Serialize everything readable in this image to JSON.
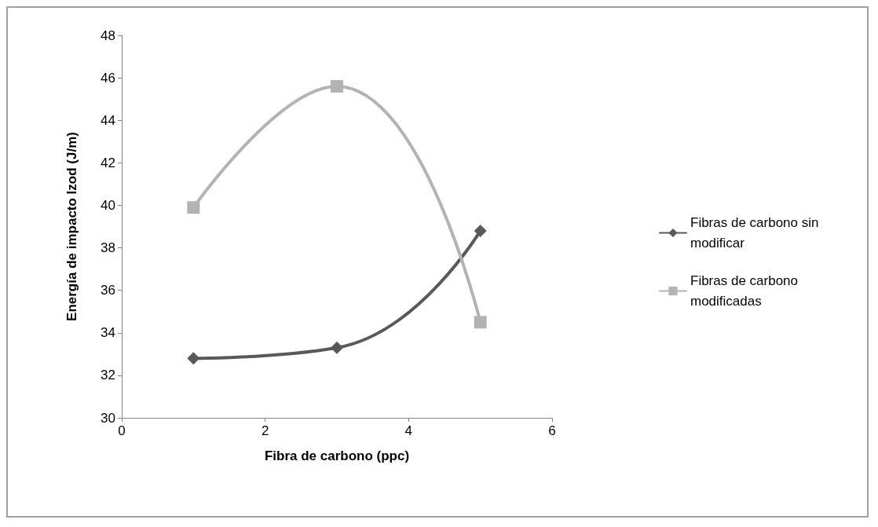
{
  "chart_data": {
    "type": "line",
    "xlabel": "Fibra de carbono (ppc)",
    "ylabel": "Energía de impacto Izod (J/m)",
    "x": [
      1,
      3,
      5
    ],
    "series": [
      {
        "name": "Fibras de carbono sin modificar",
        "color": "#595959",
        "marker": "diamond",
        "values": [
          32.8,
          33.3,
          38.8
        ]
      },
      {
        "name": "Fibras de carbono modificadas",
        "color": "#b3b3b3",
        "marker": "square",
        "values": [
          39.9,
          45.6,
          34.5
        ]
      }
    ],
    "xlim": [
      0,
      6
    ],
    "xticks": [
      0,
      2,
      4,
      6
    ],
    "ylim": [
      30,
      48
    ],
    "yticks": [
      30,
      32,
      34,
      36,
      38,
      40,
      42,
      44,
      46,
      48
    ],
    "grid": false,
    "legend": "right",
    "line_style": "solid"
  }
}
